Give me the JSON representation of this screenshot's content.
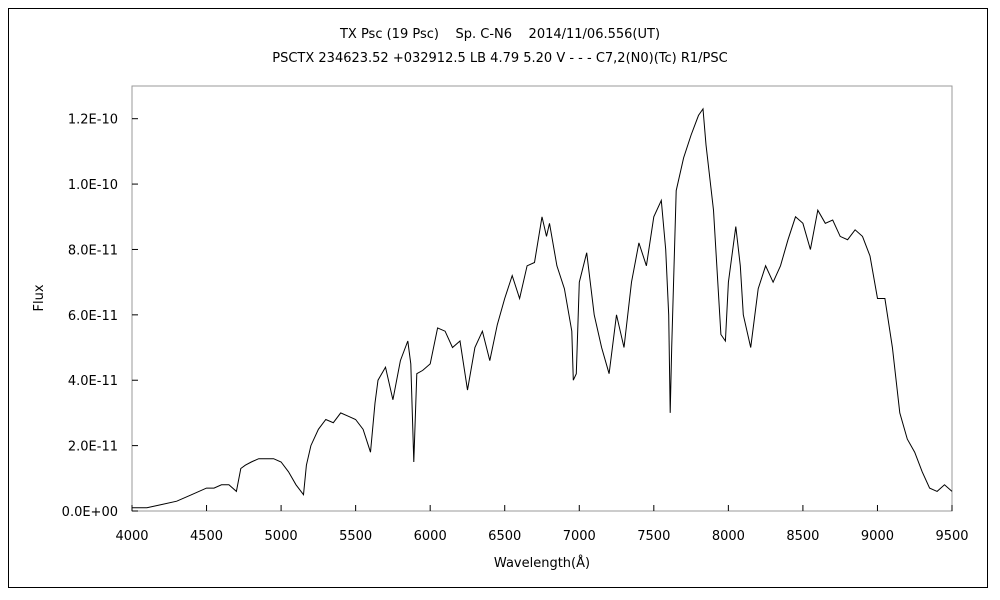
{
  "chart_data": {
    "type": "line",
    "title": "TX Psc (19 Psc)    Sp. C-N6    2014/11/06.556(UT)",
    "subtitle": "PSCTX 234623.52 +032912.5 LB 4.79 5.20 V - - - C7,2(N0)(Tc) R1/PSC",
    "xlabel": "Wavelength(Å)",
    "ylabel": "Flux",
    "xlim": [
      4000,
      9500
    ],
    "ylim": [
      0,
      1.3e-10
    ],
    "x_ticks": [
      "4000",
      "4500",
      "5000",
      "5500",
      "6000",
      "6500",
      "7000",
      "7500",
      "8000",
      "8500",
      "9000",
      "9500"
    ],
    "y_ticks": [
      "0.0E+00",
      "2.0E-11",
      "4.0E-11",
      "6.0E-11",
      "8.0E-11",
      "1.0E-10",
      "1.2E-10"
    ],
    "grid": false,
    "line_color": "#000000",
    "series": [
      {
        "x": [
          4000,
          4100,
          4200,
          4300,
          4400,
          4500,
          4550,
          4600,
          4650,
          4700,
          4730,
          4760,
          4800,
          4850,
          4900,
          4950,
          5000,
          5050,
          5100,
          5150,
          5170,
          5200,
          5250,
          5300,
          5350,
          5400,
          5450,
          5500,
          5550,
          5600,
          5630,
          5650,
          5700,
          5750,
          5800,
          5850,
          5870,
          5890,
          5910,
          5950,
          6000,
          6050,
          6100,
          6150,
          6200,
          6250,
          6300,
          6350,
          6400,
          6450,
          6500,
          6550,
          6600,
          6650,
          6700,
          6750,
          6780,
          6800,
          6850,
          6900,
          6950,
          6960,
          6980,
          7000,
          7050,
          7100,
          7150,
          7200,
          7250,
          7300,
          7350,
          7400,
          7450,
          7500,
          7550,
          7580,
          7600,
          7610,
          7620,
          7650,
          7700,
          7750,
          7800,
          7830,
          7850,
          7900,
          7950,
          7980,
          8000,
          8050,
          8080,
          8100,
          8150,
          8200,
          8250,
          8300,
          8350,
          8400,
          8450,
          8500,
          8550,
          8600,
          8650,
          8700,
          8750,
          8800,
          8850,
          8900,
          8950,
          9000,
          9050,
          9100,
          9150,
          9200,
          9250,
          9300,
          9350,
          9400,
          9450,
          9500
        ],
        "y": [
          1e-12,
          1e-12,
          2e-12,
          3e-12,
          5e-12,
          7e-12,
          7e-12,
          8e-12,
          8e-12,
          6e-12,
          1.3e-11,
          1.4e-11,
          1.5e-11,
          1.6e-11,
          1.6e-11,
          1.6e-11,
          1.5e-11,
          1.2e-11,
          8e-12,
          5e-12,
          1.4e-11,
          2e-11,
          2.5e-11,
          2.8e-11,
          2.7e-11,
          3e-11,
          2.9e-11,
          2.8e-11,
          2.5e-11,
          1.8e-11,
          3.3e-11,
          4e-11,
          4.4e-11,
          3.4e-11,
          4.6e-11,
          5.2e-11,
          4.5e-11,
          1.5e-11,
          4.2e-11,
          4.3e-11,
          4.5e-11,
          5.6e-11,
          5.5e-11,
          5e-11,
          5.2e-11,
          3.7e-11,
          5e-11,
          5.5e-11,
          4.6e-11,
          5.7e-11,
          6.5e-11,
          7.2e-11,
          6.5e-11,
          7.5e-11,
          7.6e-11,
          9e-11,
          8.4e-11,
          8.8e-11,
          7.5e-11,
          6.8e-11,
          5.5e-11,
          4e-11,
          4.2e-11,
          7e-11,
          7.9e-11,
          6e-11,
          5e-11,
          4.2e-11,
          6e-11,
          5e-11,
          7e-11,
          8.2e-11,
          7.5e-11,
          9e-11,
          9.5e-11,
          8e-11,
          6e-11,
          3e-11,
          5e-11,
          9.8e-11,
          1.08e-10,
          1.15e-10,
          1.21e-10,
          1.23e-10,
          1.12e-10,
          9.2e-11,
          5.4e-11,
          5.2e-11,
          7e-11,
          8.7e-11,
          7.5e-11,
          6e-11,
          5e-11,
          6.8e-11,
          7.5e-11,
          7e-11,
          7.5e-11,
          8.3e-11,
          9e-11,
          8.8e-11,
          8e-11,
          9.2e-11,
          8.8e-11,
          8.9e-11,
          8.4e-11,
          8.3e-11,
          8.6e-11,
          8.4e-11,
          7.8e-11,
          6.5e-11,
          6.5e-11,
          5e-11,
          3e-11,
          2.2e-11,
          1.8e-11,
          1.2e-11,
          7e-12,
          6e-12,
          8e-12,
          6e-12
        ]
      }
    ]
  }
}
